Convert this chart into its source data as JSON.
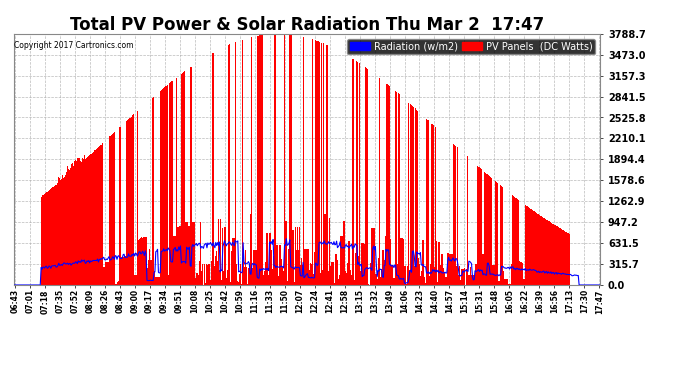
{
  "title": "Total PV Power & Solar Radiation Thu Mar 2  17:47",
  "copyright": "Copyright 2017 Cartronics.com",
  "legend_labels": [
    "Radiation (w/m2)",
    "PV Panels  (DC Watts)"
  ],
  "legend_colors": [
    "#0000ff",
    "#ff0000"
  ],
  "y_ticks": [
    0.0,
    315.7,
    631.5,
    947.2,
    1262.9,
    1578.6,
    1894.4,
    2210.1,
    2525.8,
    2841.5,
    3157.3,
    3473.0,
    3788.7
  ],
  "y_max": 3788.7,
  "y_min": 0.0,
  "x_labels": [
    "06:43",
    "07:01",
    "07:18",
    "07:35",
    "07:52",
    "08:09",
    "08:26",
    "08:43",
    "09:00",
    "09:17",
    "09:34",
    "09:51",
    "10:08",
    "10:25",
    "10:42",
    "10:59",
    "11:16",
    "11:33",
    "11:50",
    "12:07",
    "12:24",
    "12:41",
    "12:58",
    "13:15",
    "13:32",
    "13:49",
    "14:06",
    "14:23",
    "14:40",
    "14:57",
    "15:14",
    "15:31",
    "15:48",
    "16:05",
    "16:22",
    "16:39",
    "16:56",
    "17:13",
    "17:30",
    "17:47"
  ],
  "plot_bg_color": "#ffffff",
  "fig_bg": "#ffffff",
  "grid_color": "#aaaaaa",
  "pv_color": "#ff0000",
  "radiation_color": "#0000ff",
  "title_fontsize": 12,
  "legend_fontsize": 7,
  "tick_fontsize": 7,
  "x_tick_fontsize": 5.5
}
